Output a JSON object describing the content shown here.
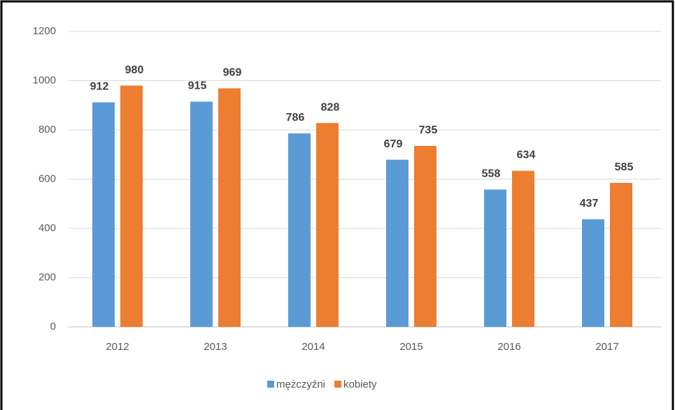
{
  "chart_data": {
    "type": "bar",
    "categories": [
      "2012",
      "2013",
      "2014",
      "2015",
      "2016",
      "2017"
    ],
    "series": [
      {
        "name": "mężczyźni",
        "color": "#5b9bd5",
        "values": [
          912,
          915,
          786,
          679,
          558,
          437
        ]
      },
      {
        "name": "kobiety",
        "color": "#ed7d31",
        "values": [
          980,
          969,
          828,
          735,
          634,
          585
        ]
      }
    ],
    "ylim": [
      0,
      1200
    ],
    "yticks": [
      0,
      200,
      400,
      600,
      800,
      1000,
      1200
    ],
    "grid": true,
    "legend": "bottom"
  }
}
